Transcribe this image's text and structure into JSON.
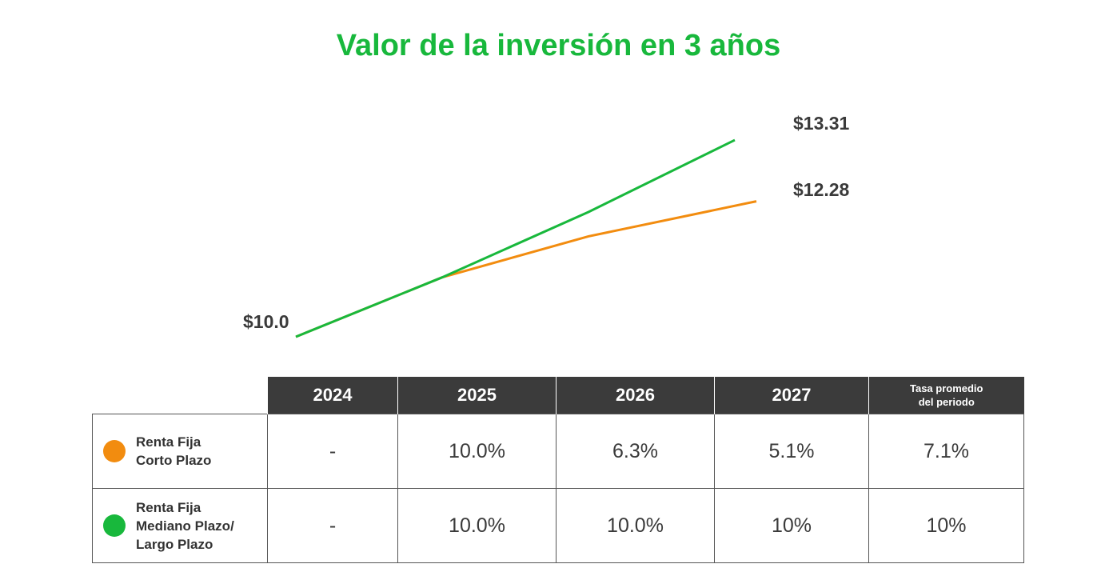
{
  "title": "Valor de la inversión en 3 años",
  "colors": {
    "title": "#18b83c",
    "green": "#18b83c",
    "orange": "#f28c0f",
    "header_bg": "#3b3b3b"
  },
  "chart_data": {
    "type": "line",
    "x": [
      "2024",
      "2025",
      "2026",
      "2027"
    ],
    "series": [
      {
        "color": "#18b83c",
        "values": [
          10.0,
          11.0,
          12.1,
          13.31
        ]
      },
      {
        "color": "#f28c0f",
        "values": [
          10.0,
          11.0,
          11.69,
          12.28
        ]
      }
    ],
    "data_labels": [
      "$10.0",
      "$13.31",
      "$12.28"
    ],
    "grid": false,
    "axes_visible": false
  },
  "table": {
    "headers": [
      "2024",
      "2025",
      "2026",
      "2027",
      "Tasa promedio\ndel periodo"
    ],
    "rows": [
      {
        "name": "Renta Fija\nCorto Plazo",
        "dot": "#f28c0f",
        "values": [
          "-",
          "10.0%",
          "6.3%",
          "5.1%",
          "7.1%"
        ]
      },
      {
        "name": "Renta Fija\nMediano Plazo/\nLargo Plazo",
        "dot": "#18b83c",
        "values": [
          "-",
          "10.0%",
          "10.0%",
          "10%",
          "10%"
        ]
      }
    ]
  }
}
